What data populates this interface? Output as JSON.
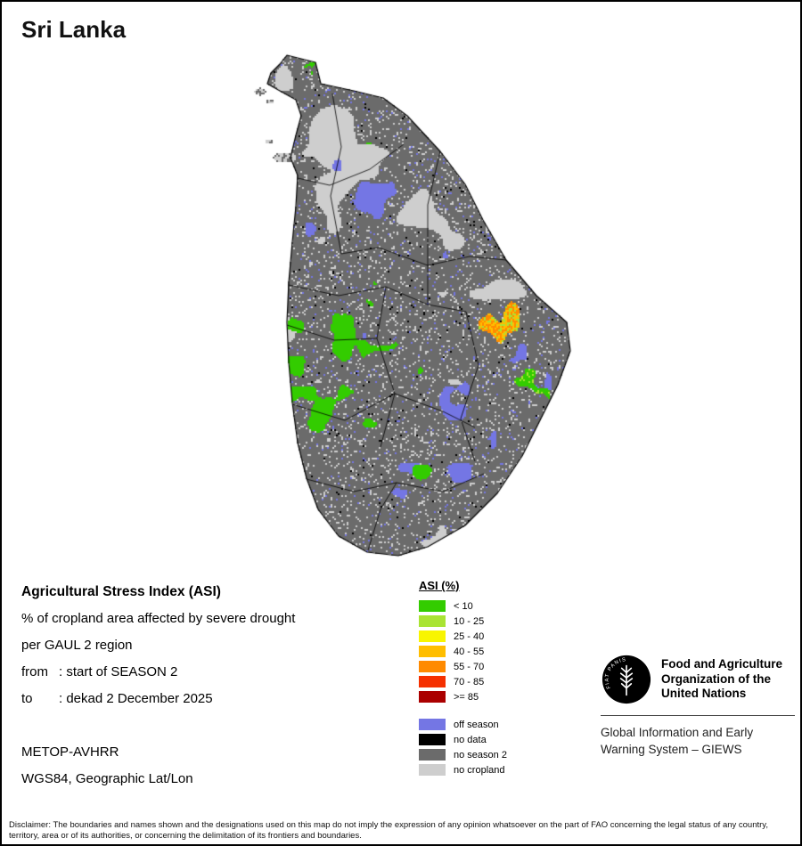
{
  "page": {
    "title": "Sri Lanka"
  },
  "info": {
    "heading": "Agricultural Stress Index (ASI)",
    "line1": "% of cropland area affected by severe drought",
    "line2": "per GAUL 2 region",
    "from_label": "from",
    "from_value": ": start of SEASON 2",
    "to_label": "to",
    "to_value": ": dekad 2 December 2025",
    "sensor": "METOP-AVHRR",
    "projection": "WGS84, Geographic Lat/Lon"
  },
  "legend": {
    "title": "ASI (%)",
    "classes": [
      {
        "label": "< 10",
        "color": "#33CC00"
      },
      {
        "label": "10 - 25",
        "color": "#A9E434"
      },
      {
        "label": "25 - 40",
        "color": "#F8F500"
      },
      {
        "label": "40 - 55",
        "color": "#FFBE00"
      },
      {
        "label": "55 - 70",
        "color": "#FF8A00"
      },
      {
        "label": "70 - 85",
        "color": "#F53000"
      },
      {
        "label": ">= 85",
        "color": "#AB0000"
      }
    ],
    "extra": [
      {
        "label": "off season",
        "color": "#7476E4"
      },
      {
        "label": "no data",
        "color": "#000000"
      },
      {
        "label": "no season 2",
        "color": "#6B6B6B"
      },
      {
        "label": "no cropland",
        "color": "#CECECE"
      }
    ]
  },
  "branding": {
    "org_lines": [
      "Food and Agriculture",
      "Organization of the",
      "United Nations"
    ],
    "giews_lines": [
      "Global Information and Early",
      "Warning System – GIEWS"
    ],
    "motto": "FIAT PANIS"
  },
  "disclaimer": "Disclaimer: The boundaries and names shown and the designations used on this map do not imply the expression of any opinion whatsoever on the part of FAO concerning the legal status of any country, territory, area or of its authorities, or concerning the delimitation of its frontiers and boundaries."
}
